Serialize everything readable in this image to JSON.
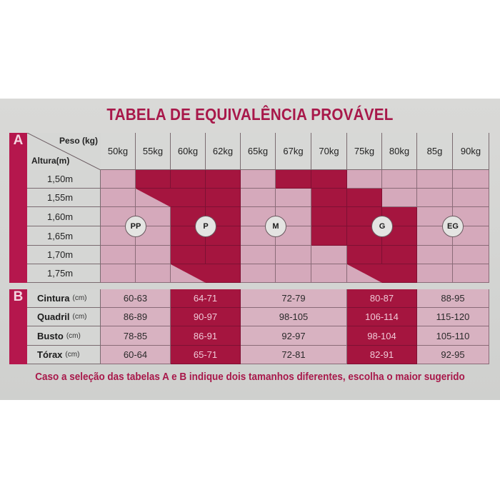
{
  "title": "TABELA DE EQUIVALÊNCIA PROVÁVEL",
  "table_a": {
    "letter": "A",
    "corner": {
      "top_label": "Peso (kg)",
      "bottom_label": "Altura(m)"
    },
    "weights": [
      "50kg",
      "55kg",
      "60kg",
      "62kg",
      "65kg",
      "67kg",
      "70kg",
      "75kg",
      "80kg",
      "85g",
      "90kg"
    ],
    "heights": [
      "1,50m",
      "1,55m",
      "1,60m",
      "1,65m",
      "1,70m",
      "1,75m"
    ],
    "grid": [
      [
        "L",
        "D",
        "D",
        "D",
        "L",
        "D",
        "D",
        "L",
        "L",
        "L",
        "L"
      ],
      [
        "L",
        "T",
        "D",
        "D",
        "L",
        "L",
        "D",
        "D",
        "L",
        "L",
        "L"
      ],
      [
        "L",
        "L",
        "D",
        "D",
        "L",
        "L",
        "D",
        "D",
        "D",
        "L",
        "L"
      ],
      [
        "L",
        "L",
        "D",
        "D",
        "L",
        "L",
        "D",
        "D",
        "D",
        "L",
        "L"
      ],
      [
        "L",
        "L",
        "D",
        "D",
        "L",
        "L",
        "L",
        "D",
        "D",
        "L",
        "L"
      ],
      [
        "L",
        "L",
        "B",
        "D",
        "L",
        "L",
        "L",
        "B",
        "D",
        "L",
        "L"
      ]
    ],
    "sizes": [
      {
        "label": "PP"
      },
      {
        "label": "P"
      },
      {
        "label": "M"
      },
      {
        "label": "G"
      },
      {
        "label": "EG"
      }
    ]
  },
  "table_b": {
    "letter": "B",
    "unit": "(cm)",
    "rows": [
      {
        "label": "Cintura",
        "values": [
          "60-63",
          "64-71",
          "72-79",
          "80-87",
          "88-95"
        ]
      },
      {
        "label": "Quadril",
        "values": [
          "86-89",
          "90-97",
          "98-105",
          "106-114",
          "115-120"
        ]
      },
      {
        "label": "Busto",
        "values": [
          "78-85",
          "86-91",
          "92-97",
          "98-104",
          "105-110"
        ]
      },
      {
        "label": "Tórax",
        "values": [
          "60-64",
          "65-71",
          "72-81",
          "82-91",
          "92-95"
        ]
      }
    ]
  },
  "note": "Caso a seleção das tabelas A e B indique dois tamanhos diferentes, escolha o maior sugerido",
  "colors": {
    "accent": "#a5153f",
    "light_cell": "#d5a9bb",
    "title": "#a8184a",
    "background": "#d6d7d5"
  }
}
